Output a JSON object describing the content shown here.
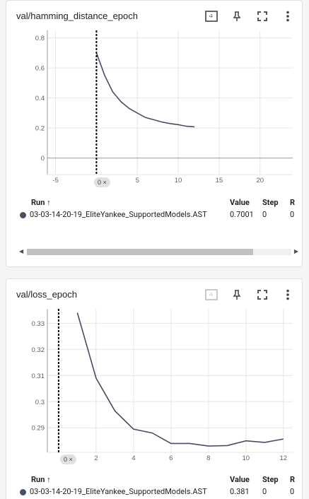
{
  "cards": [
    {
      "title": "val/hamming_distance_epoch",
      "actions": [
        "fit-domain-icon",
        "pin-icon",
        "fullscreen-icon",
        "more-vert-icon"
      ],
      "step_badge": "0 ×",
      "table": {
        "headers": {
          "run": "Run ↑",
          "value": "Value",
          "step": "Step",
          "relative": "R"
        },
        "rows": [
          {
            "run": "03-03-14-20-19_EliteYankee_SupportedModels.AST",
            "value": "0.7001",
            "step": "0",
            "relative": "0"
          }
        ]
      }
    },
    {
      "title": "val/loss_epoch",
      "actions": [
        "fit-domain-icon",
        "pin-icon",
        "fullscreen-icon",
        "more-vert-icon"
      ],
      "step_badge": "0 ×",
      "table": {
        "headers": {
          "run": "Run ↑",
          "value": "Value",
          "step": "Step",
          "relative": "R"
        },
        "rows": [
          {
            "run": "03-03-14-20-19_EliteYankee_SupportedModels.AST",
            "value": "0.381",
            "step": "0",
            "relative": "0"
          }
        ]
      }
    }
  ],
  "colors": {
    "series": "#425066",
    "grid": "#e6e6e6",
    "axis": "#9e9e9e",
    "cursor": "#000000"
  },
  "chart_data": [
    {
      "type": "line",
      "title": "val/hamming_distance_epoch",
      "xlabel": "",
      "ylabel": "",
      "xlim": [
        -6,
        24
      ],
      "ylim": [
        -0.11,
        0.85
      ],
      "xticks": [
        -5,
        5,
        10,
        15,
        20
      ],
      "yticks": [
        0,
        0.2,
        0.4,
        0.6,
        0.8
      ],
      "yticklabels": [
        "0",
        "0.2",
        "0.4",
        "0.6",
        "0.8"
      ],
      "zero_line": true,
      "cursor_x": 0,
      "grid": true,
      "series": [
        {
          "x": [
            0,
            1,
            2,
            3,
            4,
            5,
            6,
            7,
            8,
            9,
            10,
            11,
            12
          ],
          "values": [
            0.7,
            0.55,
            0.44,
            0.375,
            0.33,
            0.3,
            0.27,
            0.255,
            0.24,
            0.23,
            0.222,
            0.212,
            0.208
          ]
        }
      ]
    },
    {
      "type": "line",
      "title": "val/loss_epoch",
      "xlabel": "",
      "ylabel": "",
      "xlim": [
        -0.6,
        12.5
      ],
      "ylim": [
        0.2806,
        0.3355
      ],
      "xticks": [
        2,
        4,
        6,
        8,
        10,
        12
      ],
      "yticks": [
        0.29,
        0.3,
        0.31,
        0.32,
        0.33
      ],
      "yticklabels": [
        "0.29",
        "0.3",
        "0.31",
        "0.32",
        "0.33"
      ],
      "zero_line": false,
      "cursor_x": 0,
      "grid": true,
      "series": [
        {
          "x": [
            1,
            2,
            3,
            4,
            5,
            6,
            7,
            8,
            9,
            10,
            11,
            12
          ],
          "values": [
            0.334,
            0.309,
            0.2965,
            0.2895,
            0.288,
            0.284,
            0.284,
            0.283,
            0.2832,
            0.285,
            0.2844,
            0.2857
          ]
        }
      ]
    }
  ]
}
